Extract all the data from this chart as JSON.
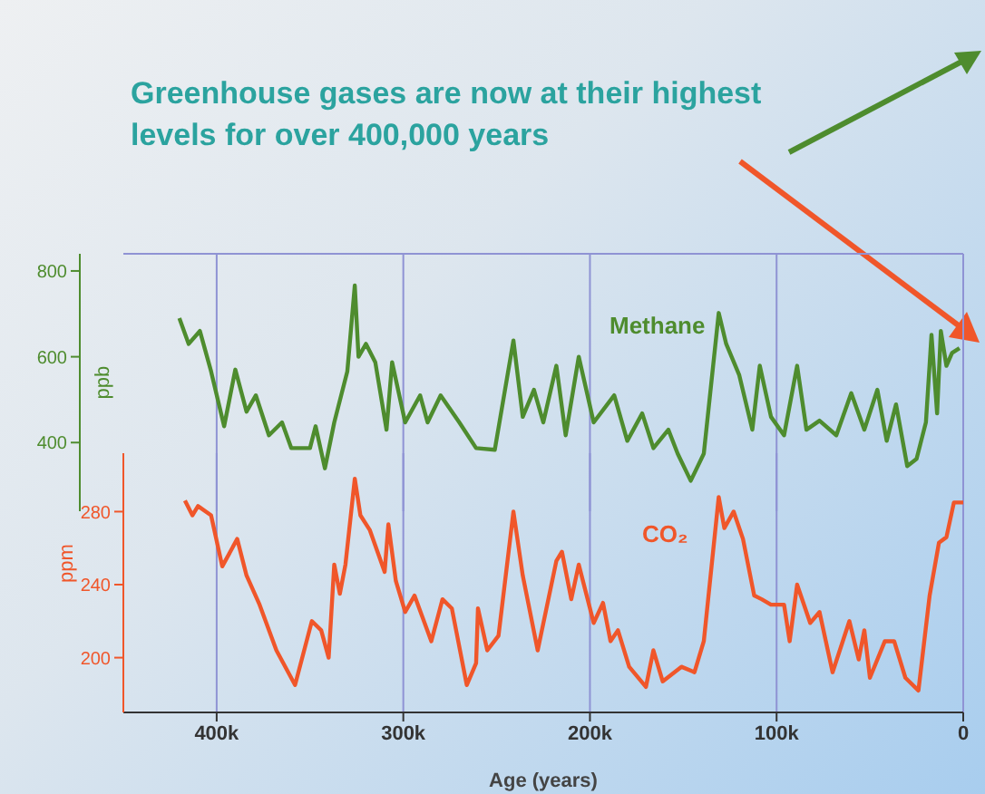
{
  "chart_data": [
    {
      "type": "line",
      "title": "Greenhouse gases are now at their highest levels for over 400,000 years",
      "ylabel": "ppb",
      "xlim": [
        450000,
        0
      ],
      "xticks": [
        400000,
        300000,
        200000,
        100000,
        0
      ],
      "ylim": [
        240,
        840
      ],
      "yticks": [
        400,
        600,
        800
      ],
      "tick_labels": "y",
      "grid": "x",
      "series": [
        {
          "name": "Methane",
          "color": "#4e8c2e",
          "x": [
            420000,
            415000,
            409000,
            403000,
            396000,
            390000,
            384000,
            379000,
            372000,
            365000,
            360000,
            350000,
            347000,
            342000,
            337000,
            330000,
            326000,
            324000,
            320000,
            315000,
            309000,
            306000,
            299000,
            291000,
            287000,
            280000,
            270000,
            261000,
            251000,
            241000,
            236000,
            230000,
            225000,
            218000,
            213000,
            206000,
            198000,
            187000,
            180000,
            172000,
            166000,
            158000,
            153000,
            146000,
            139000,
            131000,
            127000,
            120000,
            113000,
            109000,
            103000,
            96000,
            89000,
            84000,
            77000,
            68000,
            60000,
            53000,
            46000,
            41000,
            36000,
            30000,
            25000,
            20000,
            17000,
            14000,
            12000,
            9000,
            6000,
            2000
          ],
          "values": [
            690,
            630,
            660,
            566,
            438,
            570,
            472,
            510,
            417,
            447,
            387,
            387,
            438,
            340,
            447,
            566,
            766,
            600,
            630,
            587,
            430,
            587,
            447,
            510,
            447,
            510,
            447,
            387,
            383,
            638,
            460,
            523,
            447,
            579,
            417,
            600,
            447,
            510,
            404,
            468,
            387,
            430,
            374,
            311,
            374,
            702,
            630,
            557,
            430,
            579,
            460,
            417,
            579,
            430,
            451,
            417,
            515,
            430,
            523,
            404,
            489,
            345,
            362,
            447,
            651,
            468,
            660,
            579,
            609,
            620
          ]
        }
      ]
    },
    {
      "type": "line",
      "xlabel": "Age (years)",
      "ylabel": "ppm",
      "xlim": [
        450000,
        0
      ],
      "xticks": [
        {
          "value": 400000,
          "label": "400k"
        },
        {
          "value": 300000,
          "label": "300k"
        },
        {
          "value": 200000,
          "label": "200k"
        },
        {
          "value": 100000,
          "label": "100k"
        },
        0
      ],
      "ylim": [
        170,
        312
      ],
      "yticks": [
        200,
        240,
        280
      ],
      "grid": "x",
      "series": [
        {
          "name": "CO₂",
          "color": "#f0562a",
          "x": [
            417000,
            413000,
            410000,
            403000,
            397000,
            389000,
            384000,
            377000,
            368000,
            358000,
            349000,
            344000,
            340000,
            337000,
            334000,
            331000,
            326000,
            323000,
            318000,
            310000,
            308000,
            304000,
            299000,
            294000,
            285000,
            279000,
            274000,
            266000,
            261000,
            260000,
            255000,
            249000,
            241000,
            236000,
            228000,
            218000,
            215000,
            210000,
            206000,
            198000,
            193000,
            189000,
            185000,
            179000,
            170000,
            166000,
            161000,
            151000,
            144000,
            139000,
            131000,
            128000,
            123000,
            118000,
            112000,
            108000,
            103000,
            96000,
            93000,
            89000,
            82000,
            77000,
            70000,
            61000,
            56000,
            53000,
            50000,
            42000,
            37000,
            31000,
            24000,
            18000,
            13000,
            9000,
            5000,
            0
          ],
          "values": [
            286,
            278,
            283,
            278,
            250,
            265,
            245,
            229,
            204,
            185,
            220,
            215,
            200,
            251,
            235,
            251,
            298,
            278,
            270,
            247,
            273,
            242,
            225,
            234,
            209,
            232,
            227,
            185,
            197,
            227,
            204,
            212,
            280,
            245,
            204,
            253,
            258,
            232,
            251,
            219,
            230,
            209,
            215,
            195,
            184,
            204,
            187,
            195,
            192,
            209,
            288,
            271,
            280,
            265,
            234,
            232,
            229,
            229,
            209,
            240,
            219,
            225,
            192,
            220,
            199,
            215,
            189,
            209,
            209,
            189,
            182,
            234,
            263,
            266,
            285,
            285
          ]
        }
      ]
    }
  ]
}
